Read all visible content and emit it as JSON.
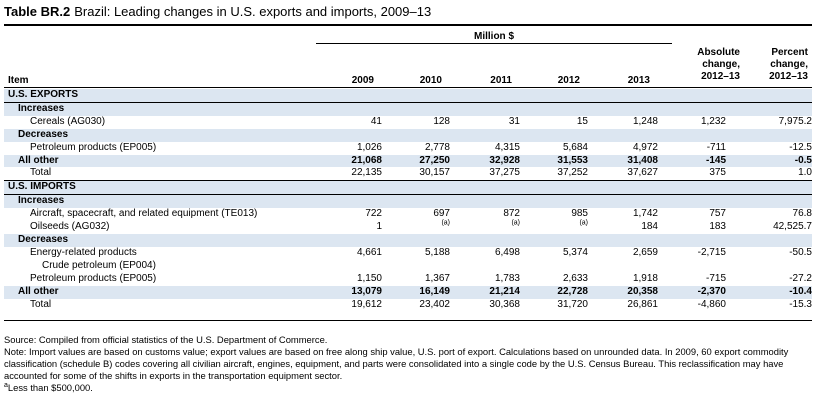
{
  "table": {
    "label": "Table BR.2",
    "title": "Brazil: Leading changes in U.S. exports and imports, 2009–13"
  },
  "header": {
    "million": "Million $",
    "item": "Item",
    "years": [
      "2009",
      "2010",
      "2011",
      "2012",
      "2013"
    ],
    "absolute": [
      "Absolute",
      "change,",
      "2012–13"
    ],
    "percent": [
      "Percent",
      "change,",
      "2012–13"
    ]
  },
  "rows": [
    {
      "label": "U.S. EXPORTS",
      "values": [
        "",
        "",
        "",
        "",
        "",
        "",
        ""
      ]
    },
    {
      "label": "Increases",
      "values": [
        "",
        "",
        "",
        "",
        "",
        "",
        ""
      ]
    },
    {
      "label": "Cereals (AG030)",
      "values": [
        "41",
        "128",
        "31",
        "15",
        "1,248",
        "1,232",
        "7,975.2"
      ]
    },
    {
      "label": "Decreases",
      "values": [
        "",
        "",
        "",
        "",
        "",
        "",
        ""
      ]
    },
    {
      "label": "Petroleum products (EP005)",
      "values": [
        "1,026",
        "2,778",
        "4,315",
        "5,684",
        "4,972",
        "-711",
        "-12.5"
      ]
    },
    {
      "label": "All other",
      "values": [
        "21,068",
        "27,250",
        "32,928",
        "31,553",
        "31,408",
        "-145",
        "-0.5"
      ]
    },
    {
      "label": "Total",
      "values": [
        "22,135",
        "30,157",
        "37,275",
        "37,252",
        "37,627",
        "375",
        "1.0"
      ]
    },
    {
      "label": "U.S. IMPORTS",
      "values": [
        "",
        "",
        "",
        "",
        "",
        "",
        ""
      ]
    },
    {
      "label": "Increases",
      "values": [
        "",
        "",
        "",
        "",
        "",
        "",
        ""
      ]
    },
    {
      "label": "Aircraft, spacecraft, and related equipment (TE013)",
      "values": [
        "722",
        "697",
        "872",
        "985",
        "1,742",
        "757",
        "76.8"
      ]
    },
    {
      "label": "Oilseeds (AG032)",
      "values": [
        "1",
        "(a)",
        "(a)",
        "(a)",
        "184",
        "183",
        "42,525.7"
      ]
    },
    {
      "label": "Decreases",
      "values": [
        "",
        "",
        "",
        "",
        "",
        "",
        ""
      ]
    },
    {
      "label": "Energy-related products",
      "values": [
        "4,661",
        "5,188",
        "6,498",
        "5,374",
        "2,659",
        "-2,715",
        "-50.5"
      ]
    },
    {
      "label": "Crude petroleum (EP004)",
      "values": [
        "",
        "",
        "",
        "",
        "",
        "",
        ""
      ]
    },
    {
      "label": "Petroleum products (EP005)",
      "values": [
        "1,150",
        "1,367",
        "1,783",
        "2,633",
        "1,918",
        "-715",
        "-27.2"
      ]
    },
    {
      "label": "All other",
      "values": [
        "13,079",
        "16,149",
        "21,214",
        "22,728",
        "20,358",
        "-2,370",
        "-10.4"
      ]
    },
    {
      "label": "Total",
      "values": [
        "19,612",
        "23,402",
        "30,368",
        "31,720",
        "26,861",
        "-4,860",
        "-15.3"
      ]
    }
  ],
  "notes": {
    "source": "Source: Compiled from official statistics of the U.S. Department of Commerce.",
    "note": "Note: Import values are based on customs value; export values are based on free along ship value, U.S. port of export. Calculations based on unrounded data. In 2009, 60 export commodity classification (schedule B) codes covering all civilian aircraft, engines, equipment, and parts were consolidated into a single code by the U.S. Census Bureau. This reclassification may have accounted for some of the shifts in exports in the transportation equipment sector.",
    "footnote_marker": "a",
    "footnote_text": "Less than $500,000."
  }
}
